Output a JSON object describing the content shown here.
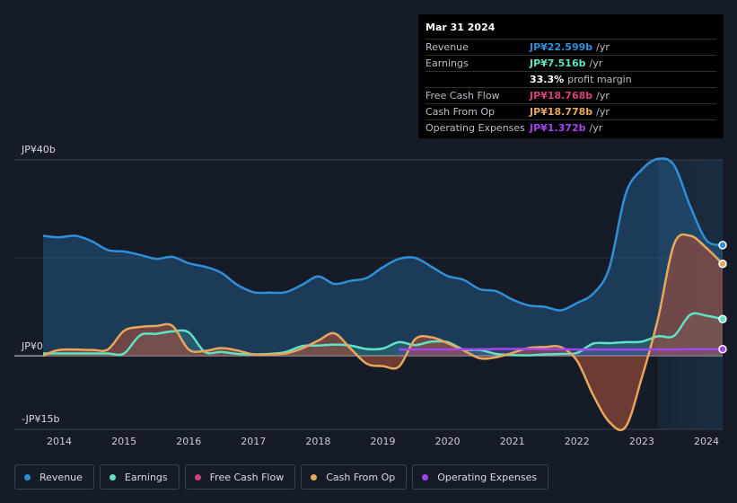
{
  "colors": {
    "revenue": "#2f8fd9",
    "earnings": "#5ee3c5",
    "free_cash_flow": "#d3417f",
    "cash_from_op": "#e7a75c",
    "operating_expenses": "#a444ec"
  },
  "tooltip": {
    "date": "Mar 31 2024",
    "rows": [
      {
        "label": "Revenue",
        "value": "JP¥22.599b",
        "unit": "/yr"
      },
      {
        "label": "Earnings",
        "value": "JP¥7.516b",
        "unit": "/yr"
      },
      {
        "label": "",
        "value": "33.3%",
        "unit": "profit margin"
      },
      {
        "label": "Free Cash Flow",
        "value": "JP¥18.768b",
        "unit": "/yr"
      },
      {
        "label": "Cash From Op",
        "value": "JP¥18.778b",
        "unit": "/yr"
      },
      {
        "label": "Operating Expenses",
        "value": "JP¥1.372b",
        "unit": "/yr"
      }
    ]
  },
  "legend": [
    {
      "key": "revenue",
      "label": "Revenue"
    },
    {
      "key": "earnings",
      "label": "Earnings"
    },
    {
      "key": "free_cash_flow",
      "label": "Free Cash Flow"
    },
    {
      "key": "cash_from_op",
      "label": "Cash From Op"
    },
    {
      "key": "operating_expenses",
      "label": "Operating Expenses"
    }
  ],
  "chart_data": {
    "type": "area",
    "title": "",
    "y_axis_labels": [
      {
        "value": 40,
        "label": "JP¥40b"
      },
      {
        "value": 0,
        "label": "JP¥0"
      },
      {
        "value": -15,
        "label": "-JP¥15b"
      }
    ],
    "ylim": [
      -15,
      40
    ],
    "xlim": [
      2013.75,
      2024.25
    ],
    "x_ticks": [
      2014,
      2015,
      2016,
      2017,
      2018,
      2019,
      2020,
      2021,
      2022,
      2023,
      2024
    ],
    "x_tick_labels": [
      "2014",
      "2015",
      "2016",
      "2017",
      "2018",
      "2019",
      "2020",
      "2021",
      "2022",
      "2023",
      "2024"
    ],
    "highlight_from": 2023.25,
    "series": [
      {
        "key": "revenue",
        "name": "Revenue",
        "points": [
          [
            2013.75,
            24.5
          ],
          [
            2014.0,
            24.2
          ],
          [
            2014.25,
            24.5
          ],
          [
            2014.5,
            23.4
          ],
          [
            2014.75,
            21.6
          ],
          [
            2015.0,
            21.3
          ],
          [
            2015.25,
            20.6
          ],
          [
            2015.5,
            19.8
          ],
          [
            2015.75,
            20.2
          ],
          [
            2016.0,
            18.9
          ],
          [
            2016.25,
            18.2
          ],
          [
            2016.5,
            17.0
          ],
          [
            2016.75,
            14.5
          ],
          [
            2017.0,
            13.0
          ],
          [
            2017.25,
            12.9
          ],
          [
            2017.5,
            13.0
          ],
          [
            2017.75,
            14.5
          ],
          [
            2018.0,
            16.2
          ],
          [
            2018.25,
            14.7
          ],
          [
            2018.5,
            15.3
          ],
          [
            2018.75,
            15.9
          ],
          [
            2019.0,
            18.1
          ],
          [
            2019.25,
            19.8
          ],
          [
            2019.5,
            20.0
          ],
          [
            2019.75,
            18.2
          ],
          [
            2020.0,
            16.3
          ],
          [
            2020.25,
            15.5
          ],
          [
            2020.5,
            13.6
          ],
          [
            2020.75,
            13.2
          ],
          [
            2021.0,
            11.5
          ],
          [
            2021.25,
            10.3
          ],
          [
            2021.5,
            10.0
          ],
          [
            2021.75,
            9.3
          ],
          [
            2022.0,
            10.8
          ],
          [
            2022.25,
            12.7
          ],
          [
            2022.5,
            18.0
          ],
          [
            2022.75,
            33.0
          ],
          [
            2023.0,
            38.0
          ],
          [
            2023.25,
            40.2
          ],
          [
            2023.5,
            38.9
          ],
          [
            2023.75,
            30.5
          ],
          [
            2024.0,
            23.6
          ],
          [
            2024.25,
            22.6
          ]
        ]
      },
      {
        "key": "earnings",
        "name": "Earnings",
        "points": [
          [
            2013.75,
            0.5
          ],
          [
            2014.0,
            0.5
          ],
          [
            2014.25,
            0.5
          ],
          [
            2014.5,
            0.5
          ],
          [
            2014.75,
            0.5
          ],
          [
            2015.0,
            0.5
          ],
          [
            2015.25,
            4.2
          ],
          [
            2015.5,
            4.5
          ],
          [
            2015.75,
            5.0
          ],
          [
            2016.0,
            4.8
          ],
          [
            2016.25,
            0.8
          ],
          [
            2016.5,
            0.8
          ],
          [
            2016.75,
            0.4
          ],
          [
            2017.0,
            0.3
          ],
          [
            2017.25,
            0.4
          ],
          [
            2017.5,
            0.8
          ],
          [
            2017.75,
            2.0
          ],
          [
            2018.0,
            2.1
          ],
          [
            2018.25,
            2.3
          ],
          [
            2018.5,
            2.1
          ],
          [
            2018.75,
            1.4
          ],
          [
            2019.0,
            1.5
          ],
          [
            2019.25,
            2.8
          ],
          [
            2019.5,
            2.2
          ],
          [
            2019.75,
            2.9
          ],
          [
            2020.0,
            2.8
          ],
          [
            2020.25,
            1.3
          ],
          [
            2020.5,
            1.2
          ],
          [
            2020.75,
            0.4
          ],
          [
            2021.0,
            0.2
          ],
          [
            2021.25,
            0.1
          ],
          [
            2021.5,
            0.3
          ],
          [
            2021.75,
            0.4
          ],
          [
            2022.0,
            0.6
          ],
          [
            2022.25,
            2.5
          ],
          [
            2022.5,
            2.6
          ],
          [
            2022.75,
            2.8
          ],
          [
            2023.0,
            2.9
          ],
          [
            2023.25,
            4.0
          ],
          [
            2023.5,
            4.1
          ],
          [
            2023.75,
            8.4
          ],
          [
            2024.0,
            8.2
          ],
          [
            2024.25,
            7.5
          ]
        ]
      },
      {
        "key": "free_cash_flow",
        "name": "Free Cash Flow",
        "points": [
          [
            2013.75,
            0
          ],
          [
            2014.0,
            1.2
          ],
          [
            2014.5,
            1.2
          ],
          [
            2014.75,
            1.3
          ],
          [
            2015.0,
            5.1
          ],
          [
            2015.25,
            5.9
          ],
          [
            2015.5,
            6.1
          ],
          [
            2015.75,
            6.1
          ],
          [
            2016.0,
            1.3
          ],
          [
            2016.25,
            1.0
          ],
          [
            2016.5,
            1.6
          ],
          [
            2016.75,
            1.1
          ],
          [
            2017.0,
            0.3
          ],
          [
            2017.25,
            0.3
          ],
          [
            2017.5,
            0.5
          ],
          [
            2017.75,
            1.5
          ],
          [
            2018.0,
            3.1
          ],
          [
            2018.25,
            4.6
          ],
          [
            2018.5,
            1.5
          ],
          [
            2018.75,
            -1.6
          ],
          [
            2019.0,
            -2.1
          ],
          [
            2019.25,
            -2.2
          ],
          [
            2019.5,
            3.4
          ],
          [
            2019.75,
            3.8
          ],
          [
            2020.0,
            2.6
          ],
          [
            2020.25,
            1.1
          ],
          [
            2020.5,
            -0.5
          ],
          [
            2020.75,
            -0.3
          ],
          [
            2021.0,
            0.6
          ],
          [
            2021.25,
            1.6
          ],
          [
            2021.5,
            1.8
          ],
          [
            2021.75,
            1.8
          ],
          [
            2022.0,
            -1.0
          ],
          [
            2022.25,
            -8.0
          ],
          [
            2022.5,
            -13.5
          ],
          [
            2022.75,
            -14.5
          ],
          [
            2023.0,
            -4.5
          ],
          [
            2023.25,
            7.5
          ],
          [
            2023.5,
            22.8
          ],
          [
            2023.75,
            24.5
          ],
          [
            2024.0,
            22.0
          ],
          [
            2024.25,
            18.77
          ]
        ]
      },
      {
        "key": "cash_from_op",
        "name": "Cash From Op",
        "points": [
          [
            2013.75,
            0
          ],
          [
            2014.0,
            1.2
          ],
          [
            2014.5,
            1.2
          ],
          [
            2014.75,
            1.3
          ],
          [
            2015.0,
            5.1
          ],
          [
            2015.25,
            5.9
          ],
          [
            2015.5,
            6.1
          ],
          [
            2015.75,
            6.1
          ],
          [
            2016.0,
            1.3
          ],
          [
            2016.25,
            1.0
          ],
          [
            2016.5,
            1.6
          ],
          [
            2016.75,
            1.1
          ],
          [
            2017.0,
            0.3
          ],
          [
            2017.25,
            0.3
          ],
          [
            2017.5,
            0.5
          ],
          [
            2017.75,
            1.5
          ],
          [
            2018.0,
            3.1
          ],
          [
            2018.25,
            4.6
          ],
          [
            2018.5,
            1.5
          ],
          [
            2018.75,
            -1.6
          ],
          [
            2019.0,
            -2.1
          ],
          [
            2019.25,
            -2.2
          ],
          [
            2019.5,
            3.4
          ],
          [
            2019.75,
            3.8
          ],
          [
            2020.0,
            2.6
          ],
          [
            2020.25,
            1.1
          ],
          [
            2020.5,
            -0.5
          ],
          [
            2020.75,
            -0.3
          ],
          [
            2021.0,
            0.6
          ],
          [
            2021.25,
            1.6
          ],
          [
            2021.5,
            1.8
          ],
          [
            2021.75,
            1.8
          ],
          [
            2022.0,
            -1.0
          ],
          [
            2022.25,
            -8.0
          ],
          [
            2022.5,
            -13.5
          ],
          [
            2022.75,
            -14.5
          ],
          [
            2023.0,
            -4.5
          ],
          [
            2023.25,
            7.5
          ],
          [
            2023.5,
            22.8
          ],
          [
            2023.75,
            24.5
          ],
          [
            2024.0,
            22.0
          ],
          [
            2024.25,
            18.78
          ]
        ]
      },
      {
        "key": "operating_expenses",
        "name": "Operating Expenses",
        "points": [
          [
            2019.25,
            1.3
          ],
          [
            2019.5,
            1.3
          ],
          [
            2019.75,
            1.3
          ],
          [
            2020.0,
            1.3
          ],
          [
            2020.25,
            1.35
          ],
          [
            2020.5,
            1.35
          ],
          [
            2020.75,
            1.4
          ],
          [
            2021.0,
            1.4
          ],
          [
            2021.25,
            1.4
          ],
          [
            2021.5,
            1.35
          ],
          [
            2021.75,
            1.35
          ],
          [
            2022.0,
            1.3
          ],
          [
            2022.25,
            1.3
          ],
          [
            2022.5,
            1.3
          ],
          [
            2022.75,
            1.3
          ],
          [
            2023.0,
            1.3
          ],
          [
            2023.25,
            1.3
          ],
          [
            2023.5,
            1.3
          ],
          [
            2023.75,
            1.35
          ],
          [
            2024.0,
            1.35
          ],
          [
            2024.25,
            1.37
          ]
        ]
      }
    ]
  }
}
